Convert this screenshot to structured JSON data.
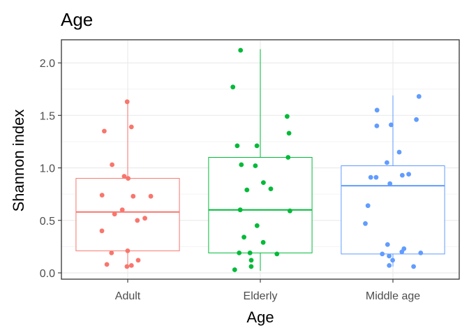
{
  "chart_data": {
    "type": "box",
    "title": "Age",
    "xlabel": "Age",
    "ylabel": "Shannon index",
    "ylim": [
      -0.06,
      2.22
    ],
    "yticks": [
      0.0,
      0.5,
      1.0,
      1.5,
      2.0
    ],
    "ytick_labels": [
      "0.0",
      "0.5",
      "1.0",
      "1.5",
      "2.0"
    ],
    "categories": [
      "Adult",
      "Elderly",
      "Middle age"
    ],
    "colors": [
      "#F8766D",
      "#00BA38",
      "#619CFF"
    ],
    "grid": true,
    "legend": "none",
    "boxes": [
      {
        "category": "Adult",
        "whisker_low": 0.05,
        "q1": 0.21,
        "median": 0.58,
        "q3": 0.9,
        "whisker_high": 1.64
      },
      {
        "category": "Elderly",
        "whisker_low": 0.02,
        "q1": 0.19,
        "median": 0.6,
        "q3": 1.1,
        "whisker_high": 2.13
      },
      {
        "category": "Middle age",
        "whisker_low": 0.06,
        "q1": 0.18,
        "median": 0.83,
        "q3": 1.02,
        "whisker_high": 1.69
      }
    ],
    "points": [
      {
        "category": "Adult",
        "values": [
          1.63,
          1.39,
          1.35,
          1.03,
          0.92,
          0.9,
          0.74,
          0.73,
          0.73,
          0.6,
          0.56,
          0.52,
          0.5,
          0.4,
          0.21,
          0.19,
          0.12,
          0.08,
          0.07,
          0.06
        ]
      },
      {
        "category": "Elderly",
        "values": [
          2.12,
          1.77,
          1.49,
          1.33,
          1.21,
          1.21,
          1.1,
          1.03,
          1.02,
          0.86,
          0.8,
          0.79,
          0.6,
          0.59,
          0.45,
          0.34,
          0.29,
          0.19,
          0.19,
          0.18,
          0.12,
          0.06,
          0.03
        ]
      },
      {
        "category": "Middle age",
        "values": [
          1.68,
          1.55,
          1.46,
          1.41,
          1.4,
          1.15,
          1.05,
          0.94,
          0.93,
          0.91,
          0.91,
          0.85,
          0.64,
          0.47,
          0.27,
          0.23,
          0.2,
          0.19,
          0.18,
          0.16,
          0.12,
          0.07,
          0.06
        ]
      }
    ]
  }
}
